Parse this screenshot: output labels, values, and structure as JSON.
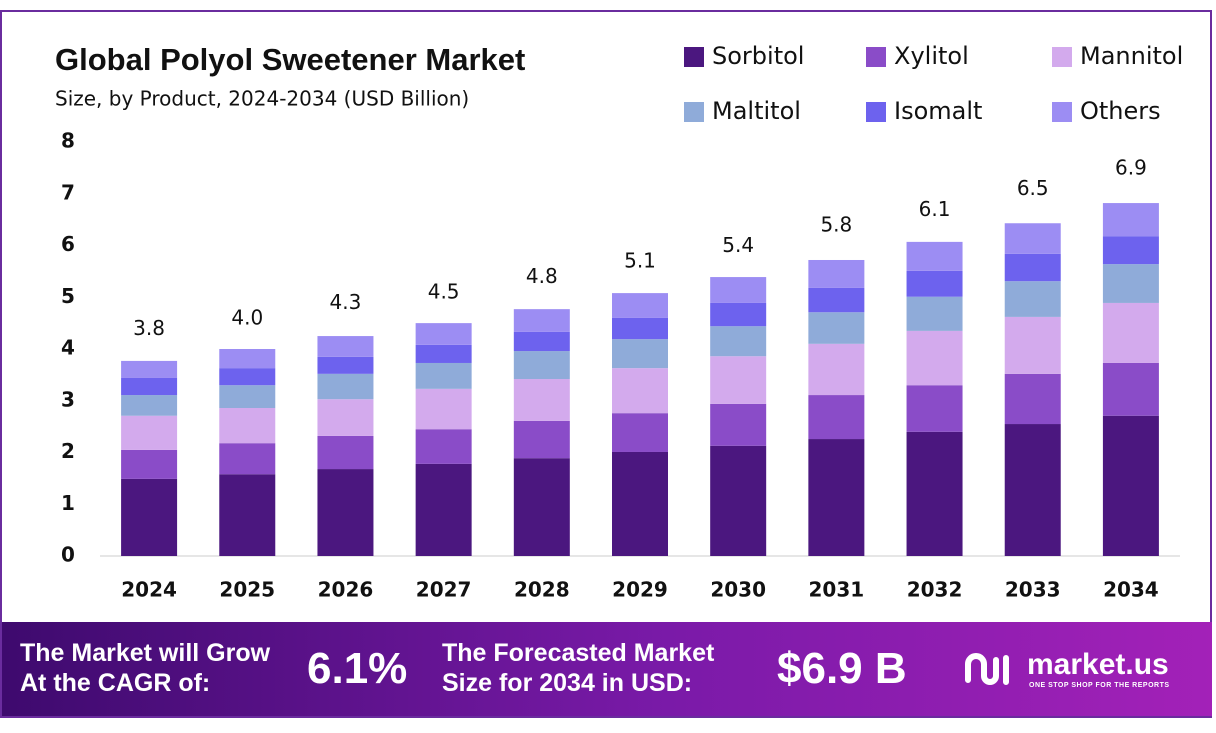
{
  "chart_data": {
    "type": "stacked-bar",
    "title": "Global Polyol Sweetener Market",
    "subtitle": "Size, by Product, 2024-2034 (USD Billion)",
    "categories": [
      "2024",
      "2025",
      "2026",
      "2027",
      "2028",
      "2029",
      "2030",
      "2031",
      "2032",
      "2033",
      "2034"
    ],
    "series": [
      {
        "name": "Sorbitol",
        "color": "#4b177f",
        "values": [
          1.49,
          1.58,
          1.68,
          1.78,
          1.89,
          2.01,
          2.13,
          2.26,
          2.4,
          2.55,
          2.71
        ]
      },
      {
        "name": "Xylitol",
        "color": "#8a4cc8",
        "values": [
          0.56,
          0.6,
          0.64,
          0.67,
          0.72,
          0.75,
          0.81,
          0.85,
          0.9,
          0.97,
          1.02
        ]
      },
      {
        "name": "Mannitol",
        "color": "#d3aaed",
        "values": [
          0.66,
          0.68,
          0.71,
          0.78,
          0.81,
          0.87,
          0.92,
          0.99,
          1.05,
          1.1,
          1.16
        ]
      },
      {
        "name": "Maltitol",
        "color": "#8fabd9",
        "values": [
          0.4,
          0.44,
          0.49,
          0.5,
          0.54,
          0.56,
          0.58,
          0.61,
          0.66,
          0.69,
          0.75
        ]
      },
      {
        "name": "Isomalt",
        "color": "#6d62ee",
        "values": [
          0.33,
          0.33,
          0.33,
          0.35,
          0.37,
          0.41,
          0.45,
          0.47,
          0.5,
          0.53,
          0.54
        ]
      },
      {
        "name": "Others",
        "color": "#9c8df3",
        "values": [
          0.33,
          0.37,
          0.4,
          0.42,
          0.44,
          0.48,
          0.5,
          0.54,
          0.56,
          0.59,
          0.64
        ]
      }
    ],
    "totals": [
      3.8,
      4.0,
      4.3,
      4.5,
      4.8,
      5.1,
      5.4,
      5.8,
      6.1,
      6.5,
      6.9
    ],
    "total_labels": [
      "3.8",
      "4.0",
      "4.3",
      "4.5",
      "4.8",
      "5.1",
      "5.4",
      "5.8",
      "6.1",
      "6.5",
      "6.9"
    ],
    "ylim": [
      0,
      8
    ],
    "yticks": [
      0,
      1,
      2,
      3,
      4,
      5,
      6,
      7,
      8
    ],
    "grid": false
  },
  "footer": {
    "cagr_text": "The Market will Grow At the CAGR of:",
    "cagr": "6.1%",
    "forecast_text": "The Forecasted Market Size for 2034 in USD:",
    "forecast": "$6.9 B",
    "brand": "market.us",
    "tagline": "ONE STOP SHOP FOR THE REPORTS"
  }
}
